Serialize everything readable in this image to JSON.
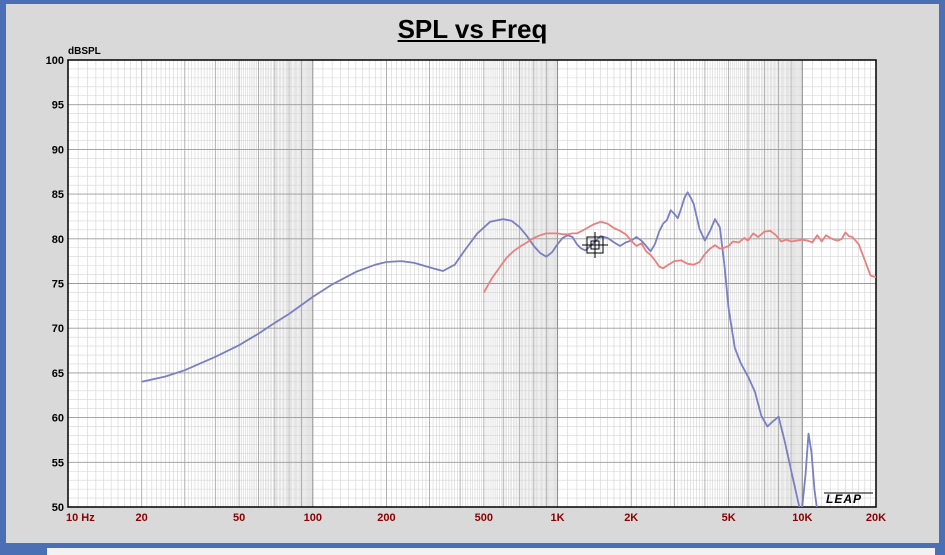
{
  "chart_data": {
    "type": "line",
    "title": "SPL vs Freq",
    "ylabel": "dBSPL",
    "xlabel": "",
    "xscale": "log",
    "xlim": [
      10,
      20000
    ],
    "ylim": [
      50,
      100
    ],
    "grid": true,
    "xticks": [
      {
        "value": 10,
        "label": "10 Hz"
      },
      {
        "value": 20,
        "label": "20"
      },
      {
        "value": 50,
        "label": "50"
      },
      {
        "value": 100,
        "label": "100"
      },
      {
        "value": 200,
        "label": "200"
      },
      {
        "value": 500,
        "label": "500"
      },
      {
        "value": 1000,
        "label": "1K"
      },
      {
        "value": 2000,
        "label": "2K"
      },
      {
        "value": 5000,
        "label": "5K"
      },
      {
        "value": 10000,
        "label": "10K"
      },
      {
        "value": 20000,
        "label": "20K"
      }
    ],
    "yticks": [
      {
        "value": 100,
        "label": "100"
      },
      {
        "value": 95,
        "label": "95"
      },
      {
        "value": 90,
        "label": "90"
      },
      {
        "value": 85,
        "label": "85"
      },
      {
        "value": 80,
        "label": "80"
      },
      {
        "value": 75,
        "label": "75"
      },
      {
        "value": 70,
        "label": "70"
      },
      {
        "value": 65,
        "label": "65"
      },
      {
        "value": 60,
        "label": "60"
      },
      {
        "value": 55,
        "label": "55"
      },
      {
        "value": 50,
        "label": "50"
      }
    ],
    "series": [
      {
        "color": "#7a7fc0",
        "x": [
          20,
          25,
          30,
          40,
          50,
          60,
          70,
          80,
          100,
          120,
          150,
          180,
          200,
          230,
          260,
          300,
          340,
          380,
          420,
          470,
          530,
          600,
          650,
          700,
          750,
          800,
          850,
          900,
          950,
          1000,
          1050,
          1100,
          1150,
          1200,
          1250,
          1300,
          1400,
          1500,
          1600,
          1700,
          1800,
          1900,
          2000,
          2100,
          2200,
          2300,
          2400,
          2500,
          2600,
          2700,
          2800,
          2900,
          3000,
          3100,
          3200,
          3300,
          3400,
          3500,
          3600,
          3800,
          4000,
          4200,
          4400,
          4600,
          4800,
          5000,
          5300,
          5600,
          6000,
          6400,
          6800,
          7200,
          7600,
          8000,
          8500,
          9000,
          9500,
          9800,
          10000,
          10300,
          10600,
          10900,
          11200,
          11500
        ],
        "y": [
          64,
          64.6,
          65.3,
          66.8,
          68.1,
          69.4,
          70.6,
          71.6,
          73.5,
          74.9,
          76.3,
          77.1,
          77.4,
          77.5,
          77.3,
          76.8,
          76.4,
          77.1,
          78.8,
          80.6,
          81.9,
          82.2,
          82,
          81.3,
          80.3,
          79.2,
          78.4,
          78,
          78.5,
          79.4,
          80.1,
          80.4,
          80.2,
          79.4,
          78.9,
          78.7,
          79.5,
          80.3,
          80.1,
          79.6,
          79.2,
          79.6,
          79.8,
          80.2,
          79.8,
          79.2,
          78.6,
          79.4,
          80.8,
          81.7,
          82.1,
          83.2,
          82.8,
          82.3,
          83.4,
          84.6,
          85.2,
          84.6,
          83.9,
          81.1,
          79.8,
          80.9,
          82.2,
          81.3,
          77.2,
          72.2,
          67.8,
          66.1,
          64.6,
          62.9,
          60.2,
          59,
          59.6,
          60.1,
          57.2,
          54.1,
          51.2,
          49.6,
          50.1,
          53.6,
          58.2,
          56.1,
          52,
          49.6
        ]
      },
      {
        "color": "#e88080",
        "x": [
          500,
          540,
          580,
          620,
          660,
          700,
          750,
          800,
          850,
          900,
          950,
          1000,
          1050,
          1100,
          1150,
          1200,
          1300,
          1400,
          1500,
          1600,
          1700,
          1800,
          1900,
          2000,
          2100,
          2200,
          2300,
          2400,
          2500,
          2600,
          2700,
          2800,
          3000,
          3200,
          3400,
          3600,
          3800,
          4000,
          4200,
          4400,
          4600,
          4800,
          5000,
          5200,
          5500,
          5800,
          6000,
          6300,
          6600,
          7000,
          7400,
          7800,
          8200,
          8600,
          9000,
          9500,
          10000,
          10500,
          11000,
          11500,
          12000,
          12500,
          13000,
          13500,
          14000,
          14500,
          15000,
          15500,
          16000,
          17000,
          18000,
          19000,
          20000
        ],
        "y": [
          74,
          75.6,
          76.8,
          77.9,
          78.6,
          79.1,
          79.6,
          80.1,
          80.4,
          80.6,
          80.6,
          80.6,
          80.5,
          80.5,
          80.6,
          80.6,
          81.1,
          81.6,
          81.9,
          81.7,
          81.2,
          80.9,
          80.5,
          79.8,
          79.2,
          79.5,
          78.6,
          78.2,
          77.6,
          76.9,
          76.7,
          77,
          77.5,
          77.6,
          77.2,
          77.1,
          77.4,
          78.3,
          78.9,
          79.3,
          78.9,
          79,
          79.2,
          79.7,
          79.6,
          80.1,
          79.8,
          80.6,
          80.2,
          80.8,
          80.9,
          80.4,
          79.7,
          79.9,
          79.7,
          79.8,
          79.9,
          79.8,
          79.6,
          80.4,
          79.7,
          80.4,
          80.1,
          79.9,
          79.8,
          80,
          80.7,
          80.3,
          80.2,
          79.4,
          77.6,
          75.9,
          75.7
        ]
      }
    ]
  },
  "watermark": "LEAP"
}
